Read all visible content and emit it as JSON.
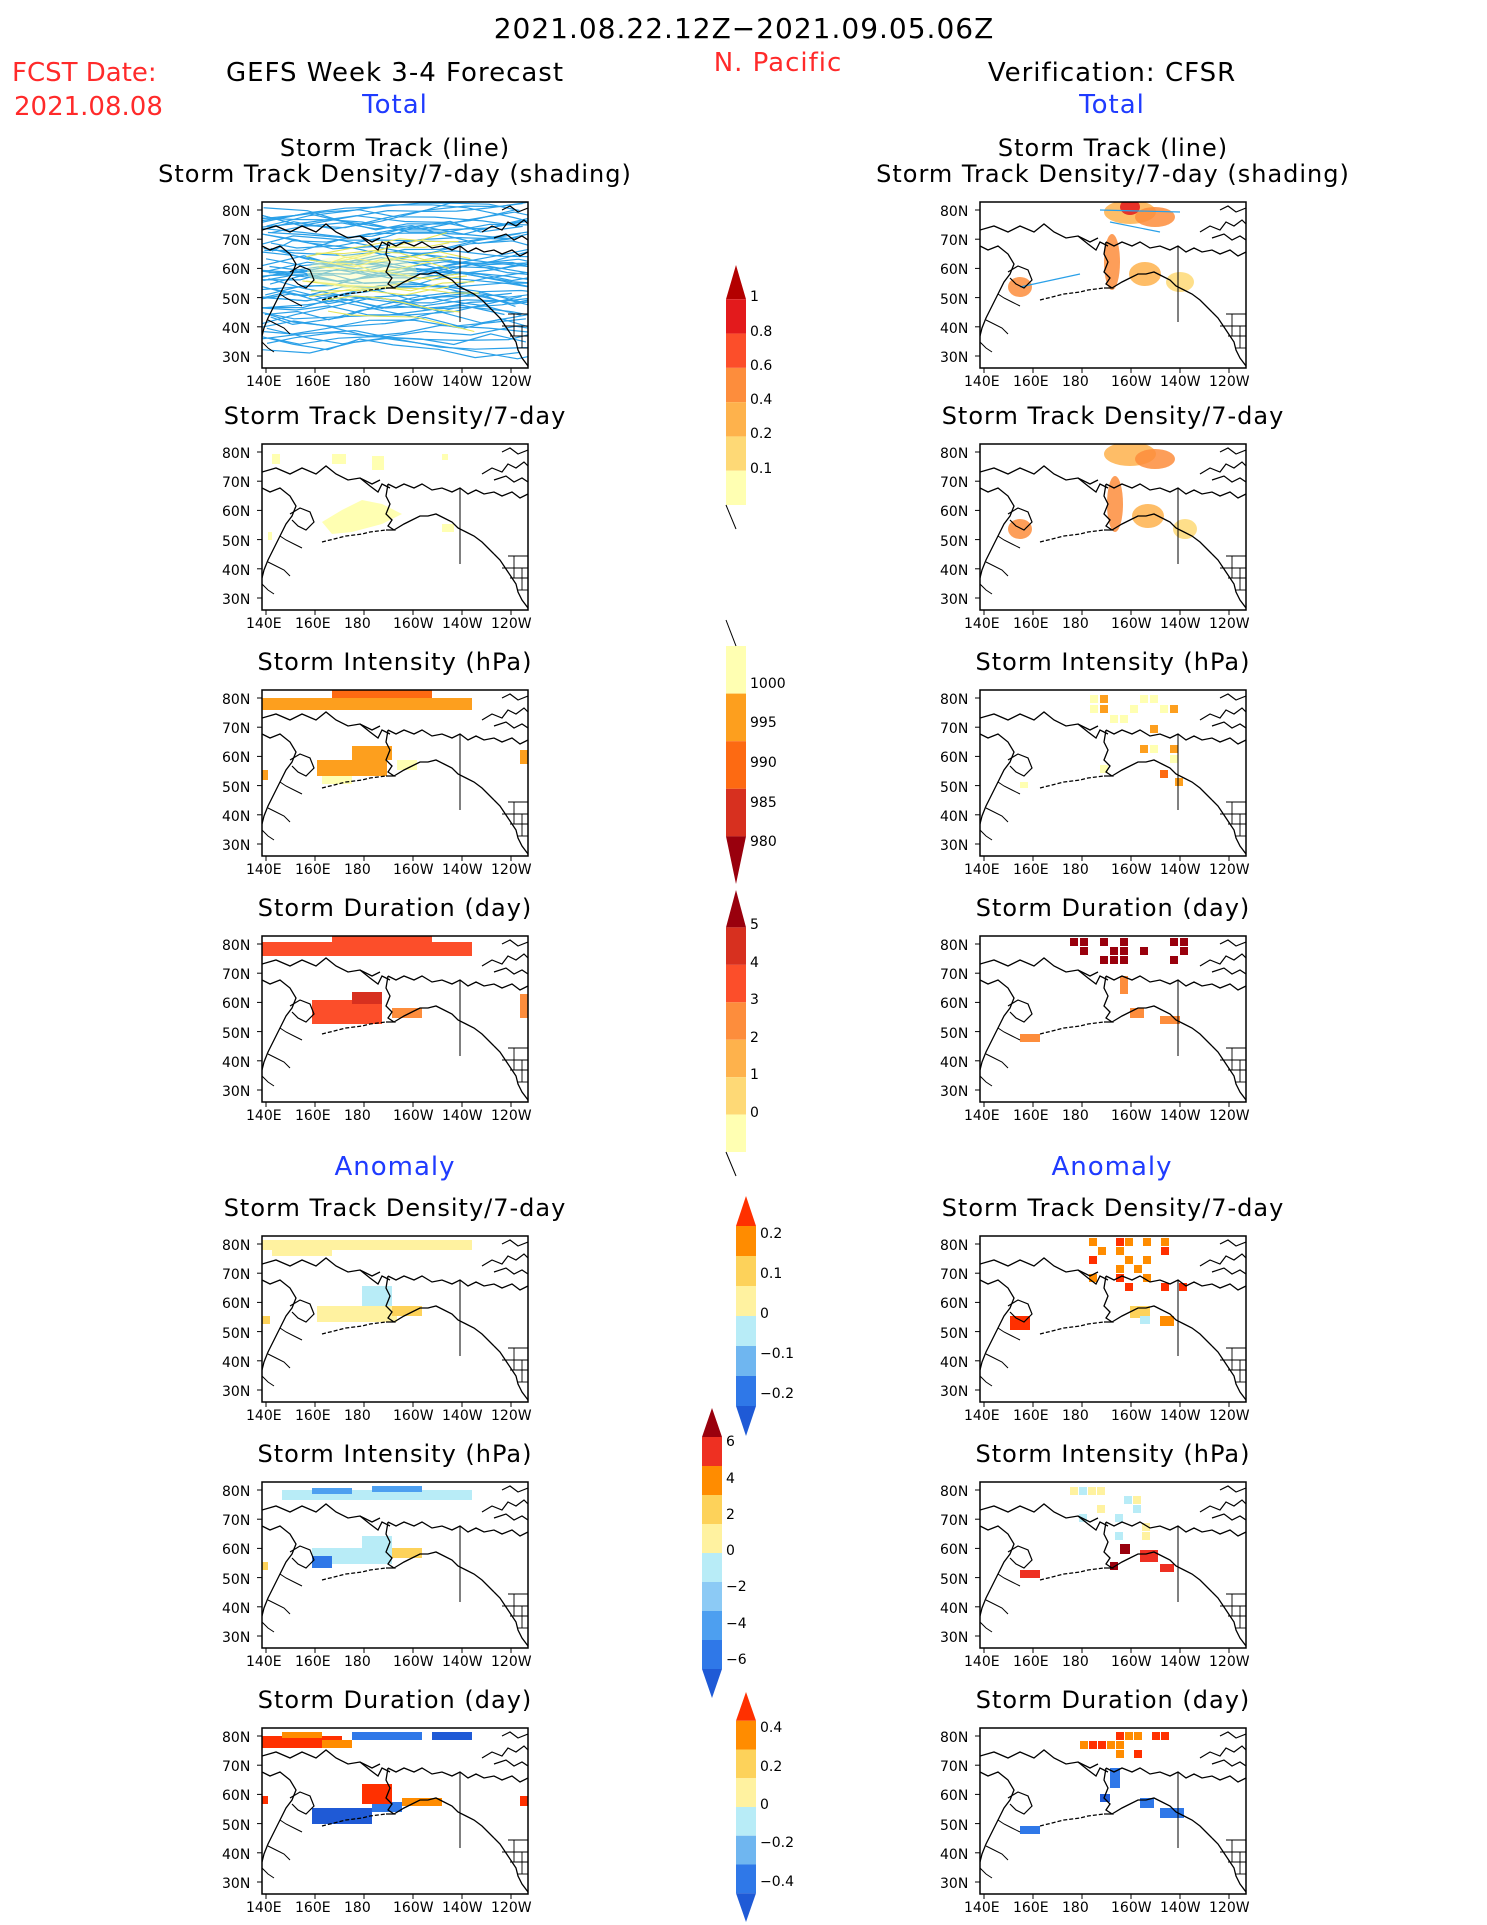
{
  "header": {
    "date_range": "2021.08.22.12Z−2021.09.05.06Z",
    "region": "N. Pacific",
    "fcst_label": "FCST Date:",
    "fcst_date": "2021.08.08",
    "forecast_title": "GEFS Week 3-4 Forecast",
    "verification_title": "Verification: CFSR"
  },
  "sections": {
    "total": "Total",
    "anomaly": "Anomaly"
  },
  "panel_titles": {
    "track_line": "Storm Track (line)",
    "track_density_shading": "Storm Track Density/7-day (shading)",
    "track_density": "Storm Track Density/7-day",
    "intensity": "Storm Intensity (hPa)",
    "duration": "Storm Duration (day)"
  },
  "axes": {
    "lat_ticks": [
      "80N",
      "70N",
      "60N",
      "50N",
      "40N",
      "30N"
    ],
    "lon_ticks": [
      "140E",
      "160E",
      "180",
      "160W",
      "140W",
      "120W"
    ]
  },
  "colorbars": [
    {
      "id": "density_total",
      "labels": [
        "1",
        "0.8",
        "0.6",
        "0.4",
        "0.2",
        "0.1"
      ],
      "colors": [
        "#b30000",
        "#e31a1c",
        "#fc4e2a",
        "#fd8d3c",
        "#feb24c",
        "#fed976",
        "#ffffb2"
      ],
      "tail": "bottom"
    },
    {
      "id": "intensity_total",
      "labels": [
        "1000",
        "995",
        "990",
        "985",
        "980"
      ],
      "colors": [
        "#ffffb2",
        "#fd9f1e",
        "#fd6a12",
        "#d7301f",
        "#99000d"
      ],
      "tail": "top"
    },
    {
      "id": "duration_total",
      "labels": [
        "5",
        "4",
        "3",
        "2",
        "1",
        "0"
      ],
      "colors": [
        "#99000d",
        "#d7301f",
        "#fc4e2a",
        "#fd8d3c",
        "#feb24c",
        "#fed976",
        "#ffffb2"
      ],
      "tail": "bottom"
    },
    {
      "id": "density_anom",
      "labels": [
        "0.2",
        "0.1",
        "0",
        "−0.1",
        "−0.2"
      ],
      "colors": [
        "#ff3000",
        "#ff8c00",
        "#fdd25a",
        "#fff2a0",
        "#b8ecf7",
        "#6fb6f0",
        "#2f78e8",
        "#1f5ad6"
      ]
    },
    {
      "id": "intensity_anom",
      "labels": [
        "6",
        "4",
        "2",
        "0",
        "−2",
        "−4",
        "−6"
      ],
      "colors": [
        "#99000d",
        "#ee3022",
        "#ff8c00",
        "#fdd25a",
        "#fff2a0",
        "#b8ecf7",
        "#8ccaf5",
        "#4d9ff0",
        "#2f78e8",
        "#1f5ad6"
      ]
    },
    {
      "id": "duration_anom",
      "labels": [
        "0.4",
        "0.2",
        "0",
        "−0.2",
        "−0.4"
      ],
      "colors": [
        "#ff3000",
        "#ff8c00",
        "#fdd25a",
        "#fff2a0",
        "#b8ecf7",
        "#6fb6f0",
        "#2f78e8",
        "#1f5ad6"
      ]
    }
  ],
  "colors": {
    "title_red": "#ff2a2a",
    "title_blue": "#1f3bff",
    "track_blue": "#2aa0e8",
    "track_yellow": "#e6e65a"
  }
}
